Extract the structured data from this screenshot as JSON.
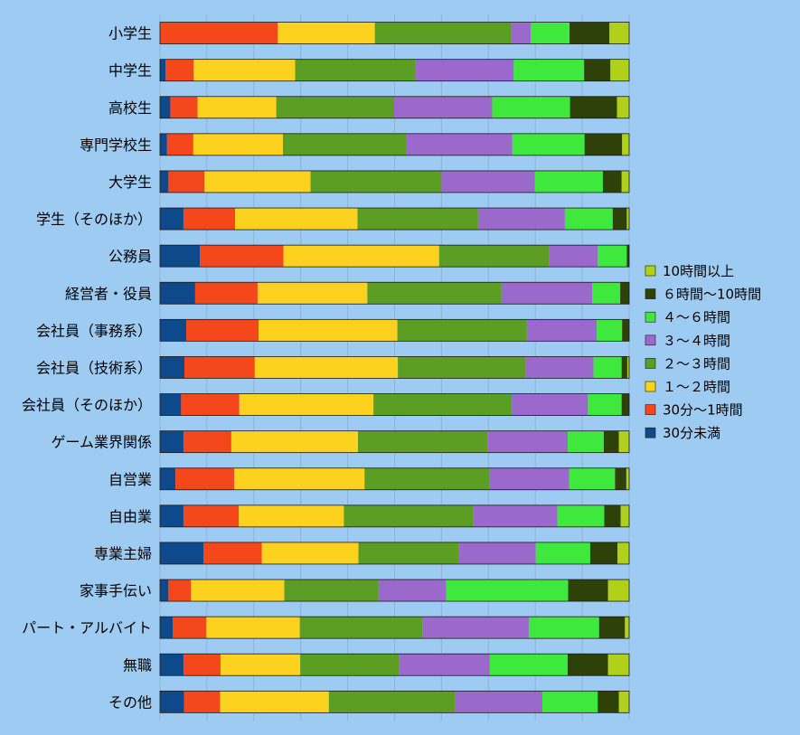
{
  "chart_data": {
    "type": "bar",
    "orientation": "horizontal",
    "stacked": "percent",
    "title": "",
    "xlabel": "",
    "ylabel": "",
    "xlim": [
      0,
      100
    ],
    "grid": true,
    "legend_position": "right",
    "categories": [
      "小学生",
      "中学生",
      "高校生",
      "専門学校生",
      "大学生",
      "学生（そのほか）",
      "公務員",
      "経営者・役員",
      "会社員（事務系）",
      "会社員（技術系）",
      "会社員（そのほか）",
      "ゲーム業界関係",
      "自営業",
      "自由業",
      "専業主婦",
      "家事手伝い",
      "パート・アルバイト",
      "無職",
      "その他"
    ],
    "series": [
      {
        "name": "30分未満",
        "color": "#0e4a8b",
        "values": [
          0.0,
          1.2,
          2.2,
          1.5,
          1.8,
          5.0,
          8.5,
          7.5,
          5.6,
          5.2,
          4.5,
          5.0,
          3.3,
          5.0,
          9.3,
          1.8,
          2.7,
          5.0,
          5.1
        ]
      },
      {
        "name": "30分～1時間",
        "color": "#f5471c",
        "values": [
          25.1,
          6.0,
          5.8,
          5.6,
          7.7,
          11.0,
          17.8,
          13.3,
          15.4,
          15.0,
          12.4,
          10.2,
          12.5,
          11.8,
          12.4,
          4.8,
          7.2,
          7.9,
          7.7
        ]
      },
      {
        "name": "１～２時間",
        "color": "#fdd21f",
        "values": [
          20.7,
          21.6,
          16.8,
          19.1,
          22.6,
          26.1,
          33.2,
          23.4,
          29.6,
          30.5,
          28.6,
          27.0,
          27.8,
          22.4,
          20.6,
          19.9,
          19.9,
          17.0,
          23.2
        ]
      },
      {
        "name": "２～３時間",
        "color": "#5c9d23",
        "values": [
          29.1,
          25.7,
          25.1,
          26.3,
          27.9,
          25.7,
          23.4,
          28.6,
          27.6,
          27.2,
          29.5,
          27.6,
          26.7,
          27.6,
          21.4,
          20.1,
          26.1,
          21.0,
          26.8
        ]
      },
      {
        "name": "３～４時間",
        "color": "#9b68cc",
        "values": [
          4.1,
          20.9,
          20.9,
          22.6,
          19.9,
          18.5,
          10.4,
          19.3,
          14.9,
          14.5,
          16.2,
          17.1,
          16.9,
          17.9,
          16.4,
          14.4,
          22.7,
          19.4,
          18.7
        ]
      },
      {
        "name": "４～６時間",
        "color": "#3fe83d",
        "values": [
          8.3,
          15.0,
          16.6,
          15.4,
          14.5,
          10.2,
          6.2,
          6.0,
          5.4,
          6.0,
          7.2,
          7.7,
          9.8,
          10.0,
          11.6,
          26.0,
          15.0,
          16.6,
          11.8
        ]
      },
      {
        "name": "６時間～10時間",
        "color": "#2d4109",
        "values": [
          8.5,
          5.6,
          10.0,
          8.0,
          4.0,
          3.0,
          0.5,
          1.9,
          1.5,
          1.2,
          1.6,
          3.2,
          2.4,
          3.5,
          5.8,
          8.5,
          5.5,
          8.6,
          4.5
        ]
      },
      {
        "name": "10時間以上",
        "color": "#b0d01a",
        "values": [
          4.2,
          4.0,
          2.6,
          1.5,
          1.6,
          0.5,
          0.0,
          0.0,
          0.0,
          0.4,
          0.0,
          2.2,
          0.6,
          1.8,
          2.5,
          4.5,
          0.9,
          4.5,
          2.2
        ]
      }
    ]
  }
}
